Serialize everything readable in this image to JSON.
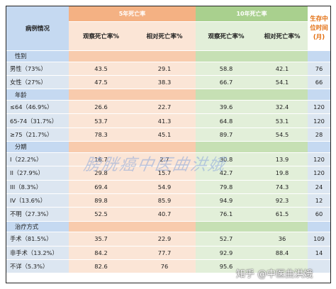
{
  "header": {
    "case_col": "病例情况",
    "five_year": "5年死亡率",
    "ten_year": "10年死亡率",
    "observed": "观察死亡率%",
    "relative": "相对死亡率%",
    "survival": "生存中位时间(月)"
  },
  "sections": [
    {
      "title": "性别",
      "rows": [
        {
          "label": "男性（73%）",
          "o5": "43.5",
          "r5": "29.1",
          "o10": "58.8",
          "r10": "42.1",
          "median": "76"
        },
        {
          "label": "女性（27%）",
          "o5": "47.5",
          "r5": "38.3",
          "o10": "66.7",
          "r10": "54.1",
          "median": "66"
        }
      ]
    },
    {
      "title": "年龄",
      "rows": [
        {
          "label": "≤64（46.9%）",
          "o5": "26.6",
          "r5": "22.7",
          "o10": "39.6",
          "r10": "32.4",
          "median": "120"
        },
        {
          "label": "65-74（31.7%）",
          "o5": "53.7",
          "r5": "41.3",
          "o10": "64.8",
          "r10": "53.1",
          "median": "120"
        },
        {
          "label": "≥75（21.7%）",
          "o5": "78.3",
          "r5": "45.1",
          "o10": "89.7",
          "r10": "54.5",
          "median": "28"
        }
      ]
    },
    {
      "title": "分期",
      "rows": [
        {
          "label": "I（22.2%）",
          "o5": "16.7",
          "r5": "2.7",
          "o10": "30.8",
          "r10": "13.9",
          "median": "120"
        },
        {
          "label": "II（27.9%）",
          "o5": "29.8",
          "r5": "15.7",
          "o10": "42.7",
          "r10": "19.8",
          "median": "120"
        },
        {
          "label": "III（8.3%）",
          "o5": "69.4",
          "r5": "54.9",
          "o10": "79.8",
          "r10": "74.3",
          "median": "24"
        },
        {
          "label": "IV（13.6%）",
          "o5": "89.8",
          "r5": "85.9",
          "o10": "94.9",
          "r10": "92.3",
          "median": "12"
        },
        {
          "label": "不明（27.3%）",
          "o5": "52.5",
          "r5": "40.7",
          "o10": "76.1",
          "r10": "61.5",
          "median": "60"
        }
      ]
    },
    {
      "title": "治疗方式",
      "rows": [
        {
          "label": "手术（81.5%）",
          "o5": "35.7",
          "r5": "22.9",
          "o10": "52.7",
          "r10": "36",
          "median": "109"
        },
        {
          "label": "非手术（13.2%）",
          "o5": "84.2",
          "r5": "77.7",
          "o10": "92.9",
          "r10": "88.4",
          "median": "14"
        },
        {
          "label": "不详（5.3%）",
          "o5": "82.6",
          "r5": "76",
          "o10": "95.6",
          "r10": "",
          "median": ""
        }
      ]
    }
  ],
  "watermark": "膀胱癌中医曲洪娥",
  "credit": "知乎 @中医曲洪娥",
  "colors": {
    "orange_header": "#f4b183",
    "green_header": "#a9d08e",
    "blue_label": "#dce6f1",
    "survival_text": "#e26b0a"
  }
}
